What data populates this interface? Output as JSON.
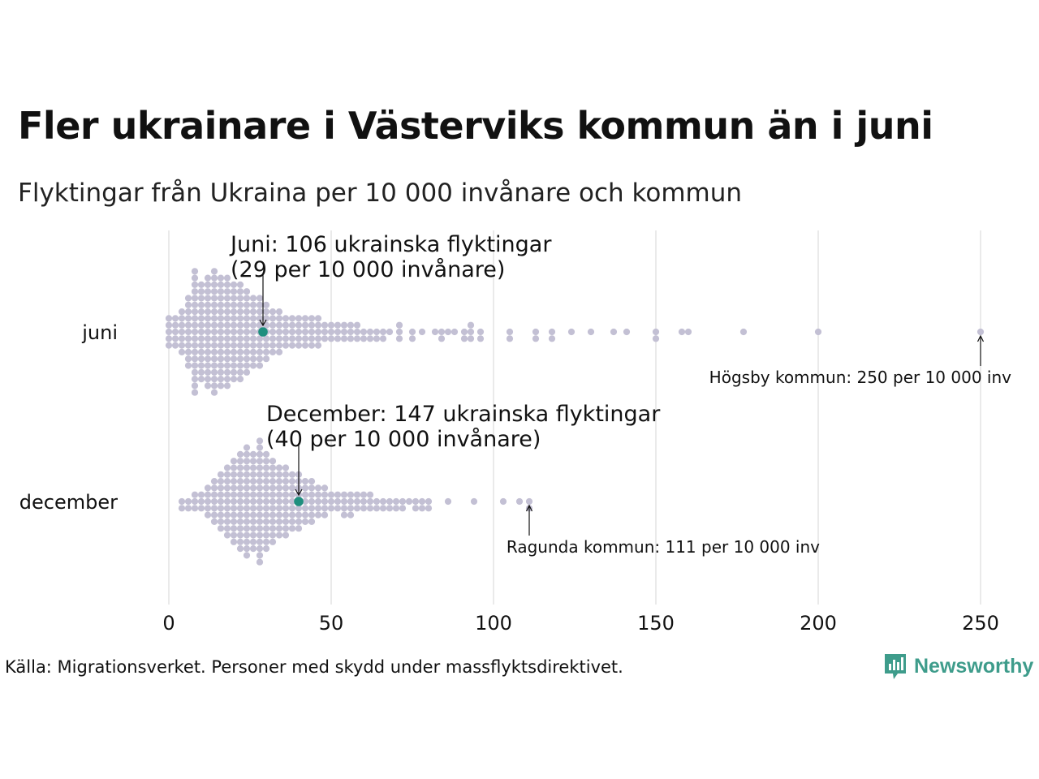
{
  "title": "Fler ukrainare i Västerviks kommun än i juni",
  "subtitle": "Flyktingar från Ukraina per 10 000 invånare och kommun",
  "source": "Källa: Migrationsverket. Personer med skydd under massflyktsdirektivet.",
  "brand": "Newsworthy",
  "colors": {
    "dots": "#c3c0d4",
    "highlight": "#1f8f7e",
    "grid": "#d4d4d4",
    "brand": "#3e9c8b"
  },
  "chart_data": {
    "type": "scatter",
    "subtype": "beeswarm",
    "xlim": [
      0,
      260
    ],
    "xticks": [
      0,
      50,
      100,
      150,
      200,
      250
    ],
    "xtick_labels": [
      "0",
      "50",
      "100",
      "150",
      "200",
      "250"
    ],
    "grid": "vertical",
    "series": [
      {
        "name": "juni",
        "bins": [
          [
            0,
            5
          ],
          [
            2,
            5
          ],
          [
            4,
            7
          ],
          [
            6,
            11
          ],
          [
            8,
            19
          ],
          [
            10,
            15
          ],
          [
            12,
            17
          ],
          [
            14,
            19
          ],
          [
            16,
            17
          ],
          [
            18,
            17
          ],
          [
            20,
            15
          ],
          [
            22,
            15
          ],
          [
            24,
            13
          ],
          [
            26,
            11
          ],
          [
            28,
            11
          ],
          [
            30,
            9
          ],
          [
            32,
            7
          ],
          [
            34,
            7
          ],
          [
            36,
            5
          ],
          [
            38,
            5
          ],
          [
            40,
            5
          ],
          [
            42,
            5
          ],
          [
            44,
            5
          ],
          [
            46,
            5
          ],
          [
            48,
            3
          ],
          [
            50,
            3
          ],
          [
            52,
            3
          ],
          [
            54,
            3
          ],
          [
            56,
            3
          ],
          [
            58,
            3
          ],
          [
            60,
            2
          ],
          [
            62,
            2
          ],
          [
            64,
            2
          ],
          [
            66,
            2
          ],
          [
            68,
            1
          ],
          [
            71,
            3
          ],
          [
            75,
            2
          ],
          [
            78,
            1
          ],
          [
            82,
            1
          ],
          [
            84,
            2
          ],
          [
            86,
            1
          ],
          [
            88,
            1
          ],
          [
            91,
            2
          ],
          [
            93,
            3
          ],
          [
            96,
            2
          ],
          [
            105,
            2
          ],
          [
            113,
            2
          ],
          [
            118,
            2
          ],
          [
            124,
            1
          ],
          [
            130,
            1
          ],
          [
            137,
            1
          ],
          [
            141,
            1
          ],
          [
            150,
            2
          ],
          [
            158,
            1
          ],
          [
            160,
            1
          ],
          [
            177,
            1
          ],
          [
            200,
            1
          ],
          [
            250,
            1
          ]
        ],
        "highlight": {
          "value": 29,
          "label_line1": "Juni: 106 ukrainska flyktingar",
          "label_line2": "(29 per 10 000 invånare)"
        },
        "extreme": {
          "value": 250,
          "label": "Högsby kommun: 250 per 10 000 inv"
        }
      },
      {
        "name": "december",
        "bins": [
          [
            4,
            2
          ],
          [
            6,
            2
          ],
          [
            8,
            3
          ],
          [
            10,
            3
          ],
          [
            12,
            5
          ],
          [
            14,
            7
          ],
          [
            16,
            9
          ],
          [
            18,
            11
          ],
          [
            20,
            13
          ],
          [
            22,
            15
          ],
          [
            24,
            17
          ],
          [
            26,
            15
          ],
          [
            28,
            19
          ],
          [
            30,
            15
          ],
          [
            32,
            13
          ],
          [
            34,
            11
          ],
          [
            36,
            11
          ],
          [
            38,
            9
          ],
          [
            40,
            9
          ],
          [
            42,
            7
          ],
          [
            44,
            7
          ],
          [
            46,
            5
          ],
          [
            48,
            5
          ],
          [
            50,
            3
          ],
          [
            52,
            3
          ],
          [
            54,
            4
          ],
          [
            56,
            4
          ],
          [
            58,
            3
          ],
          [
            60,
            3
          ],
          [
            62,
            3
          ],
          [
            64,
            2
          ],
          [
            66,
            2
          ],
          [
            68,
            2
          ],
          [
            70,
            2
          ],
          [
            72,
            2
          ],
          [
            74,
            1
          ],
          [
            76,
            2
          ],
          [
            78,
            2
          ],
          [
            80,
            2
          ],
          [
            86,
            1
          ],
          [
            94,
            1
          ],
          [
            103,
            1
          ],
          [
            108,
            1
          ],
          [
            111,
            2
          ]
        ],
        "highlight": {
          "value": 40,
          "label_line1": "December: 147 ukrainska flyktingar",
          "label_line2": "(40 per 10 000 invånare)"
        },
        "extreme": {
          "value": 111,
          "label": "Ragunda kommun: 111 per 10 000 inv"
        }
      }
    ]
  }
}
